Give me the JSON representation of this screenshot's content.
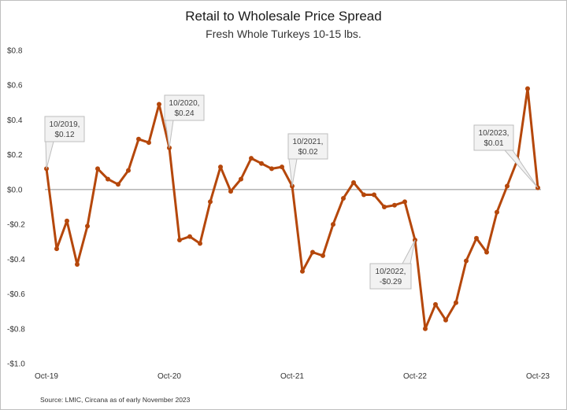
{
  "chart_data": {
    "type": "line",
    "title": "Retail to Wholesale Price Spread",
    "subtitle": "Fresh Whole Turkeys 10-15 lbs.",
    "source": "Source: LMIC, Circana as of early November 2023",
    "ylim": [
      -1.0,
      0.8
    ],
    "y_ticks": [
      0.8,
      0.6,
      0.4,
      0.2,
      0.0,
      -0.2,
      -0.4,
      -0.6,
      -0.8,
      -1.0
    ],
    "y_tick_labels": [
      "$0.8",
      "$0.6",
      "$0.4",
      "$0.2",
      "$0.0",
      "-$0.2",
      "-$0.4",
      "-$0.6",
      "-$0.8",
      "-$1.0"
    ],
    "x_tick_labels": [
      "Oct-19",
      "Oct-20",
      "Oct-21",
      "Oct-22",
      "Oct-23"
    ],
    "x_tick_indices": [
      0,
      12,
      24,
      36,
      48
    ],
    "grid": false,
    "zero_line": true,
    "line_color": "#b5470b",
    "series": [
      {
        "values": [
          0.12,
          -0.34,
          -0.18,
          -0.43,
          -0.21,
          0.12,
          0.06,
          0.03,
          0.11,
          0.29,
          0.27,
          0.49,
          0.24,
          -0.29,
          -0.27,
          -0.31,
          -0.07,
          0.13,
          -0.01,
          0.06,
          0.18,
          0.15,
          0.12,
          0.13,
          0.02,
          -0.47,
          -0.36,
          -0.38,
          -0.2,
          -0.05,
          0.04,
          -0.03,
          -0.03,
          -0.1,
          -0.09,
          -0.07,
          -0.29,
          -0.8,
          -0.66,
          -0.75,
          -0.65,
          -0.41,
          -0.28,
          -0.36,
          -0.13,
          0.02,
          0.17,
          0.58,
          0.01
        ]
      }
    ],
    "annotations": [
      {
        "text": "10/2019, $0.12",
        "line1": "10/2019,",
        "line2": "$0.12",
        "index": 0,
        "value": 0.12
      },
      {
        "text": "10/2020, $0.24",
        "line1": "10/2020,",
        "line2": "$0.24",
        "index": 12,
        "value": 0.24
      },
      {
        "text": "10/2021, $0.02",
        "line1": "10/2021,",
        "line2": "$0.02",
        "index": 24,
        "value": 0.02
      },
      {
        "text": "10/2022, -$0.29",
        "line1": "10/2022,",
        "line2": "-$0.29",
        "index": 36,
        "value": -0.29
      },
      {
        "text": "10/2023, $0.01",
        "line1": "10/2023,",
        "line2": "$0.01",
        "index": 48,
        "value": 0.01
      }
    ]
  }
}
